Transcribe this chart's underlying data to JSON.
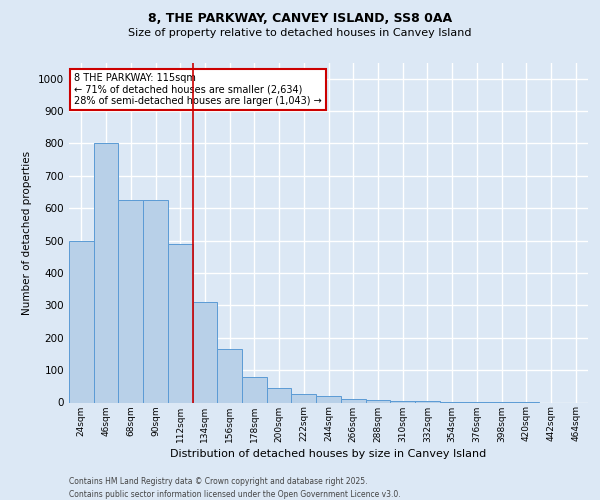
{
  "title1": "8, THE PARKWAY, CANVEY ISLAND, SS8 0AA",
  "title2": "Size of property relative to detached houses in Canvey Island",
  "xlabel": "Distribution of detached houses by size in Canvey Island",
  "ylabel": "Number of detached properties",
  "bin_labels": [
    "24sqm",
    "46sqm",
    "68sqm",
    "90sqm",
    "112sqm",
    "134sqm",
    "156sqm",
    "178sqm",
    "200sqm",
    "222sqm",
    "244sqm",
    "266sqm",
    "288sqm",
    "310sqm",
    "332sqm",
    "354sqm",
    "376sqm",
    "398sqm",
    "420sqm",
    "442sqm",
    "464sqm"
  ],
  "bar_values": [
    500,
    800,
    625,
    625,
    490,
    310,
    165,
    80,
    45,
    25,
    20,
    10,
    8,
    5,
    4,
    3,
    2,
    1,
    1,
    0,
    0
  ],
  "bar_color": "#b8d0e8",
  "bar_edge_color": "#5b9bd5",
  "red_line_index": 4,
  "annotation_text": "8 THE PARKWAY: 115sqm\n← 71% of detached houses are smaller (2,634)\n28% of semi-detached houses are larger (1,043) →",
  "annotation_box_color": "#ffffff",
  "annotation_box_edge": "#cc0000",
  "ylim": [
    0,
    1050
  ],
  "yticks": [
    0,
    100,
    200,
    300,
    400,
    500,
    600,
    700,
    800,
    900,
    1000
  ],
  "footer1": "Contains HM Land Registry data © Crown copyright and database right 2025.",
  "footer2": "Contains public sector information licensed under the Open Government Licence v3.0.",
  "background_color": "#dce8f5",
  "plot_bg_color": "#dce8f5",
  "grid_color": "#ffffff"
}
